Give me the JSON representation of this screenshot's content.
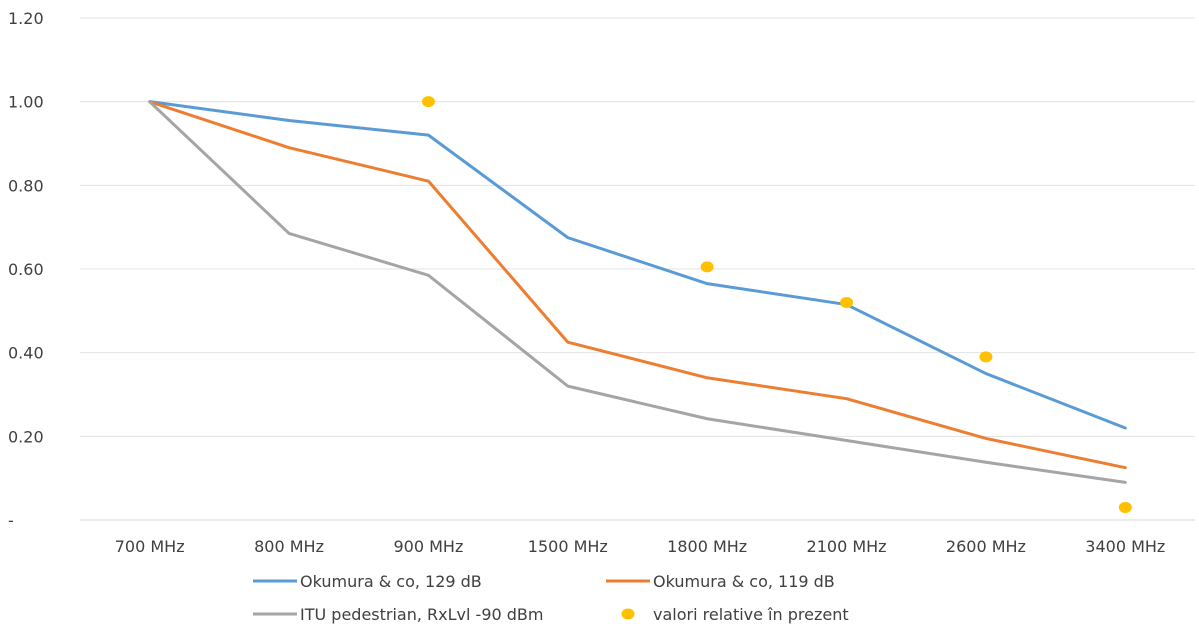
{
  "chart_data": {
    "type": "line",
    "title": "",
    "xlabel": "",
    "ylabel": "",
    "categories": [
      "700 MHz",
      "800 MHz",
      "900 MHz",
      "1500 MHz",
      "1800 MHz",
      "2100 MHz",
      "2600 MHz",
      "3400 MHz"
    ],
    "ylim": [
      0,
      1.2
    ],
    "y_ticks": [
      0,
      0.2,
      0.4,
      0.6,
      0.8,
      1.0,
      1.2
    ],
    "y_tick_labels": [
      "-",
      "0.20",
      "0.40",
      "0.60",
      "0.80",
      "1.00",
      "1.20"
    ],
    "grid": "horizontal",
    "legend_position": "bottom",
    "series": [
      {
        "name": "Okumura & co, 129 dB",
        "kind": "line",
        "color": "#5b9bd5",
        "values": [
          1.0,
          0.955,
          0.92,
          0.675,
          0.565,
          0.515,
          0.35,
          0.22
        ]
      },
      {
        "name": "Okumura & co, 119 dB",
        "kind": "line",
        "color": "#ed7d31",
        "values": [
          1.0,
          0.89,
          0.81,
          0.425,
          0.34,
          0.29,
          0.195,
          0.125
        ]
      },
      {
        "name": "ITU pedestrian, RxLvl -90 dBm",
        "kind": "line",
        "color": "#a5a5a5",
        "values": [
          1.0,
          0.685,
          0.585,
          0.32,
          0.242,
          0.19,
          0.138,
          0.09
        ]
      },
      {
        "name": "valori relative în prezent",
        "kind": "marker",
        "color": "#ffc000",
        "values": [
          null,
          null,
          1.0,
          null,
          0.605,
          0.52,
          0.39,
          0.03
        ]
      }
    ]
  }
}
